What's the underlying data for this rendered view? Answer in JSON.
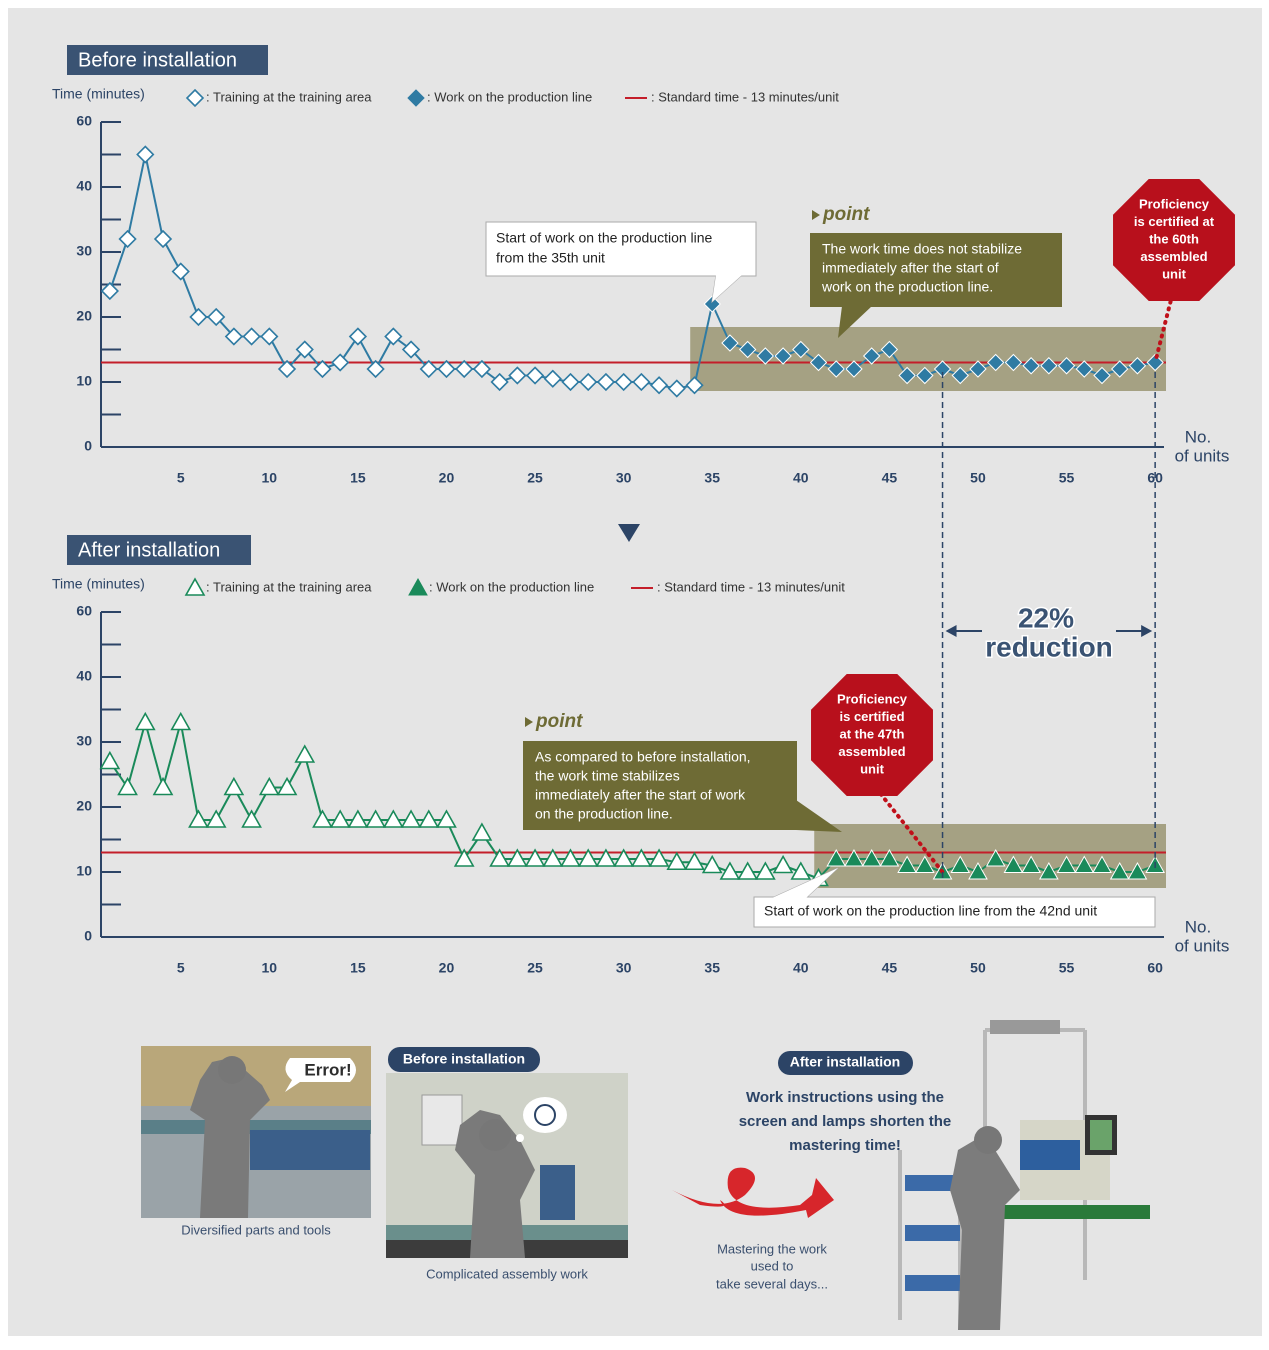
{
  "sections": {
    "before": "Before installation",
    "after": "After installation"
  },
  "reduction": [
    "22%",
    "reduction"
  ],
  "chart_data": [
    {
      "type": "line",
      "y_label": "Time (minutes)",
      "x_label": [
        "No.",
        "of units"
      ],
      "marker": "diamond",
      "x": [
        1,
        2,
        3,
        4,
        5,
        6,
        7,
        8,
        9,
        10,
        11,
        12,
        13,
        14,
        15,
        16,
        17,
        18,
        19,
        20,
        21,
        22,
        23,
        24,
        25,
        26,
        27,
        28,
        29,
        30,
        31,
        32,
        33,
        34,
        35,
        36,
        37,
        38,
        39,
        40,
        41,
        42,
        43,
        44,
        45,
        46,
        47,
        48,
        49,
        50,
        51,
        52,
        53,
        54,
        55,
        56,
        57,
        58,
        59,
        60
      ],
      "xlim": [
        0.5,
        60.5
      ],
      "xticks": [
        5,
        10,
        15,
        20,
        25,
        30,
        35,
        40,
        45,
        50,
        55,
        60
      ],
      "ylim": [
        0,
        60
      ],
      "yticks": [
        0,
        10,
        20,
        30,
        40,
        60
      ],
      "y_scale": "tick-spaced",
      "standard_time": 13,
      "standard_label": ": Standard time - 13 minutes/unit",
      "standard_color": "#c41e2a",
      "series": [
        {
          "name": ": Training at the training area",
          "color": "#2f7ba3",
          "filled": false,
          "values": [
            24,
            32,
            50,
            32,
            27,
            20,
            20,
            17,
            17,
            17,
            12,
            15,
            12,
            13,
            17,
            12,
            17,
            15,
            12,
            12,
            12,
            12,
            10,
            11,
            11,
            10.5,
            10,
            10,
            10,
            10,
            10,
            9.5,
            9,
            9.5,
            null,
            null,
            null,
            null,
            null,
            null,
            null,
            null,
            null,
            null,
            null,
            null,
            null,
            null,
            null,
            null,
            null,
            null,
            null,
            null,
            null,
            null,
            null,
            null,
            null,
            null
          ]
        },
        {
          "name": ": Work on the production line",
          "color": "#2f7ba3",
          "filled": true,
          "values": [
            null,
            null,
            null,
            null,
            null,
            null,
            null,
            null,
            null,
            null,
            null,
            null,
            null,
            null,
            null,
            null,
            null,
            null,
            null,
            null,
            null,
            null,
            null,
            null,
            null,
            null,
            null,
            null,
            null,
            null,
            null,
            null,
            null,
            null,
            22,
            16,
            15,
            14,
            14,
            15,
            13,
            12,
            12,
            14,
            15,
            11,
            11,
            12,
            11,
            12,
            13,
            13,
            12.5,
            12.5,
            12.5,
            12,
            11,
            12,
            12.5,
            13
          ]
        }
      ],
      "annotations": {
        "callout": [
          "Start of work on the production line",
          "from the 35th unit"
        ],
        "point_label": "point",
        "point_note": [
          "The work time does not stabilize",
          "immediately after the start of",
          "work on the production line."
        ],
        "proficiency": [
          "Proficiency",
          "is certified at",
          "the 60th",
          "assembled",
          "unit"
        ]
      }
    },
    {
      "type": "line",
      "y_label": "Time (minutes)",
      "x_label": [
        "No.",
        "of units"
      ],
      "marker": "triangle",
      "x": [
        1,
        2,
        3,
        4,
        5,
        6,
        7,
        8,
        9,
        10,
        11,
        12,
        13,
        14,
        15,
        16,
        17,
        18,
        19,
        20,
        21,
        22,
        23,
        24,
        25,
        26,
        27,
        28,
        29,
        30,
        31,
        32,
        33,
        34,
        35,
        36,
        37,
        38,
        39,
        40,
        41,
        42,
        43,
        44,
        45,
        46,
        47,
        48,
        49,
        50,
        51,
        52,
        53,
        54,
        55,
        56,
        57,
        58,
        59,
        60
      ],
      "xlim": [
        0.5,
        60.5
      ],
      "xticks": [
        5,
        10,
        15,
        20,
        25,
        30,
        35,
        40,
        45,
        50,
        55,
        60
      ],
      "ylim": [
        0,
        60
      ],
      "yticks": [
        0,
        10,
        20,
        30,
        40,
        60
      ],
      "y_scale": "tick-spaced",
      "standard_time": 13,
      "standard_label": ": Standard time - 13 minutes/unit",
      "standard_color": "#c41e2a",
      "series": [
        {
          "name": ": Training at the training area",
          "color": "#1a8a5a",
          "filled": false,
          "values": [
            27,
            23,
            33,
            23,
            33,
            18,
            18,
            23,
            18,
            23,
            23,
            28,
            18,
            18,
            18,
            18,
            18,
            18,
            18,
            18,
            12,
            16,
            12,
            12,
            12,
            12,
            12,
            12,
            12,
            12,
            12,
            12,
            11.5,
            11.5,
            11,
            10,
            10,
            10,
            11,
            10,
            9,
            null,
            null,
            null,
            null,
            null,
            null,
            null,
            null,
            null,
            null,
            null,
            null,
            null,
            null,
            null,
            null,
            null,
            null,
            null
          ]
        },
        {
          "name": ": Work on the production line",
          "color": "#1a8a5a",
          "filled": true,
          "values": [
            null,
            null,
            null,
            null,
            null,
            null,
            null,
            null,
            null,
            null,
            null,
            null,
            null,
            null,
            null,
            null,
            null,
            null,
            null,
            null,
            null,
            null,
            null,
            null,
            null,
            null,
            null,
            null,
            null,
            null,
            null,
            null,
            null,
            null,
            null,
            null,
            null,
            null,
            null,
            null,
            null,
            12,
            12,
            12,
            12,
            11,
            11,
            10,
            11,
            10,
            12,
            11,
            11,
            10,
            11,
            11,
            11,
            10,
            10,
            11
          ]
        }
      ],
      "annotations": {
        "callout": [
          "Start of work on the production line from the 42nd unit"
        ],
        "point_label": "point",
        "point_note": [
          "As compared to before installation,",
          "the work time stabilizes",
          "immediately after the start of work",
          "on the production line."
        ],
        "proficiency": [
          "Proficiency",
          "is certified",
          "at the 47th",
          "assembled",
          "unit"
        ]
      }
    }
  ],
  "illustrations": {
    "error": "Error!",
    "left_caption": "Diversified parts and tools",
    "before_badge": "Before installation",
    "middle_caption": "Complicated assembly work",
    "after_badge": "After installation",
    "after_text": [
      "Work instructions using the",
      "screen and lamps shorten the",
      "mastering time!"
    ],
    "past_text": [
      "Mastering the work",
      "used to",
      "take several days..."
    ]
  }
}
